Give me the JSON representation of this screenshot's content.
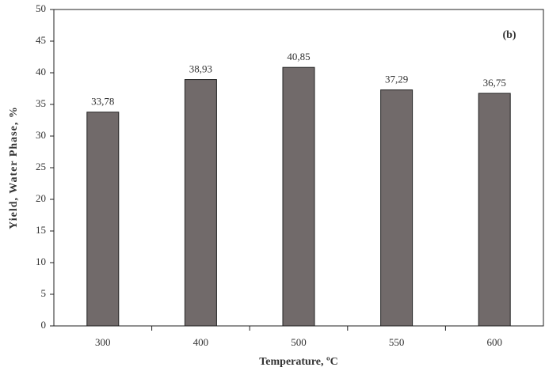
{
  "chart_data": {
    "type": "bar",
    "annotation": "(b)",
    "x_label": "Temperature, ºC",
    "y_label": "Yield, Water Phase, %",
    "categories": [
      "300",
      "400",
      "500",
      "550",
      "600"
    ],
    "values": [
      33.78,
      38.93,
      40.85,
      37.29,
      36.75
    ],
    "value_labels": [
      "33,78",
      "38,93",
      "40,85",
      "37,29",
      "36,75"
    ],
    "color": "#716a6a",
    "ylim": [
      0,
      50
    ],
    "yticks": [
      0,
      5,
      10,
      15,
      20,
      25,
      30,
      35,
      40,
      45,
      50
    ],
    "grid": false
  }
}
